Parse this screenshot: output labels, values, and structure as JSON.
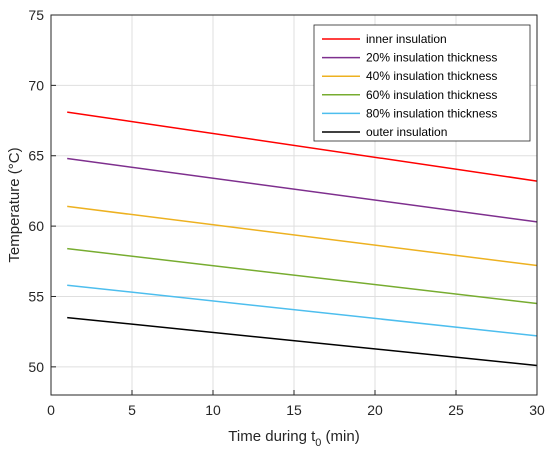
{
  "chart_data": {
    "type": "line",
    "xlabel_main": "Time during t",
    "xlabel_sub": "0",
    "xlabel_unit": " (min)",
    "ylabel": "Temperature (°C)",
    "xlim": [
      0,
      30
    ],
    "ylim": [
      48,
      75
    ],
    "xticks": [
      0,
      5,
      10,
      15,
      20,
      25,
      30
    ],
    "yticks": [
      50,
      55,
      60,
      65,
      70,
      75
    ],
    "grid": true,
    "legend_position": "top-right",
    "x": [
      1,
      30
    ],
    "series": [
      {
        "name": "inner insulation",
        "values": [
          68.1,
          63.2
        ],
        "color": "#ff0000"
      },
      {
        "name": "20% insulation thickness",
        "values": [
          64.8,
          60.3
        ],
        "color": "#7e2f8e"
      },
      {
        "name": "40% insulation thickness",
        "values": [
          61.4,
          57.2
        ],
        "color": "#edb120"
      },
      {
        "name": "60% insulation thickness",
        "values": [
          58.4,
          54.5
        ],
        "color": "#77ac30"
      },
      {
        "name": "80% insulation thickness",
        "values": [
          55.8,
          52.2
        ],
        "color": "#4dbeee"
      },
      {
        "name": "outer insulation",
        "values": [
          53.5,
          50.1
        ],
        "color": "#000000"
      }
    ]
  }
}
